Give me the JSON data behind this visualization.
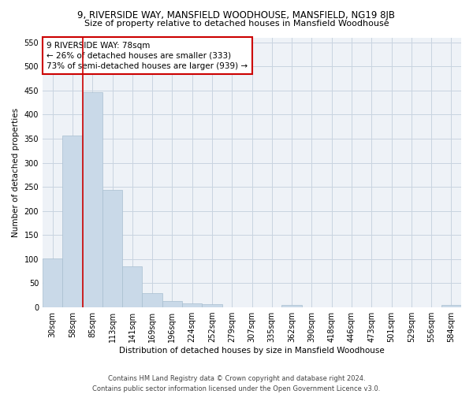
{
  "title_line1": "9, RIVERSIDE WAY, MANSFIELD WOODHOUSE, MANSFIELD, NG19 8JB",
  "title_line2": "Size of property relative to detached houses in Mansfield Woodhouse",
  "xlabel": "Distribution of detached houses by size in Mansfield Woodhouse",
  "ylabel": "Number of detached properties",
  "footnote1": "Contains HM Land Registry data © Crown copyright and database right 2024.",
  "footnote2": "Contains public sector information licensed under the Open Government Licence v3.0.",
  "property_label": "9 RIVERSIDE WAY: 78sqm",
  "annotation_line1": "← 26% of detached houses are smaller (333)",
  "annotation_line2": "73% of semi-detached houses are larger (939) →",
  "bar_color": "#c9d9e8",
  "bar_edge_color": "#a8bfd0",
  "vline_color": "#cc0000",
  "annotation_box_edgecolor": "#cc0000",
  "grid_color": "#c8d4e0",
  "bg_color": "#eef2f7",
  "categories": [
    "30sqm",
    "58sqm",
    "85sqm",
    "113sqm",
    "141sqm",
    "169sqm",
    "196sqm",
    "224sqm",
    "252sqm",
    "279sqm",
    "307sqm",
    "335sqm",
    "362sqm",
    "390sqm",
    "418sqm",
    "446sqm",
    "473sqm",
    "501sqm",
    "529sqm",
    "556sqm",
    "584sqm"
  ],
  "values": [
    102,
    356,
    447,
    243,
    85,
    30,
    13,
    9,
    6,
    0,
    0,
    0,
    5,
    0,
    0,
    0,
    0,
    0,
    0,
    0,
    5
  ],
  "ylim": [
    0,
    560
  ],
  "yticks": [
    0,
    50,
    100,
    150,
    200,
    250,
    300,
    350,
    400,
    450,
    500,
    550
  ],
  "vline_x_index": 1.5,
  "figsize": [
    6.0,
    5.0
  ],
  "dpi": 100
}
